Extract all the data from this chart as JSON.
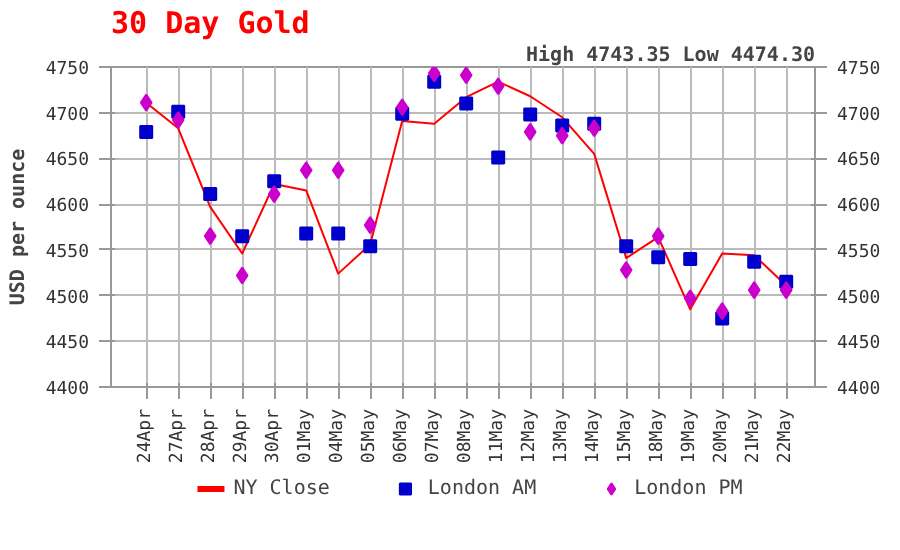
{
  "chart_data": {
    "type": "line",
    "title": "30 Day Gold",
    "subtitle": "High 4743.35 Low 4474.30",
    "ylabel": "USD per ounce",
    "categories": [
      "24Apr",
      "27Apr",
      "28Apr",
      "29Apr",
      "30Apr",
      "01May",
      "04May",
      "05May",
      "06May",
      "07May",
      "08May",
      "11May",
      "12May",
      "13May",
      "14May",
      "15May",
      "18May",
      "19May",
      "20May",
      "21May",
      "22May"
    ],
    "series": [
      {
        "name": "NY Close",
        "color": "#ff0000",
        "marker": "none",
        "values": [
          4711,
          4683,
          4597,
          4546,
          4622,
          4615,
          4524,
          4556,
          4691,
          4688,
          4717,
          4734,
          4718,
          4695,
          4655,
          4541,
          4564,
          4485,
          4546,
          4544,
          4511
        ]
      },
      {
        "name": "London AM",
        "color": "#0000cc",
        "type": "scatter",
        "marker": "square",
        "values": [
          4679,
          4701,
          4611,
          4565,
          4625,
          4568,
          4568,
          4554,
          4699,
          4734,
          4710,
          4651,
          4698,
          4686,
          4688,
          4554,
          4542,
          4540,
          4475,
          4537,
          4515
        ]
      },
      {
        "name": "London PM",
        "color": "#cc00cc",
        "type": "scatter",
        "marker": "diamond",
        "values": [
          4711,
          4692,
          4565,
          4522,
          4611,
          4637,
          4637,
          4577,
          4706,
          4743,
          4741,
          4729,
          4679,
          4675,
          4683,
          4528,
          4565,
          4497,
          4483,
          4506,
          4506
        ]
      }
    ],
    "ylim": [
      4400,
      4750
    ],
    "yticks": [
      4400,
      4450,
      4500,
      4550,
      4600,
      4650,
      4700,
      4750
    ],
    "y2lim": [
      4400,
      4750
    ],
    "y2ticks": [
      4400,
      4450,
      4500,
      4550,
      4600,
      4650,
      4700,
      4750
    ],
    "grid": true,
    "legend": "bottom"
  }
}
